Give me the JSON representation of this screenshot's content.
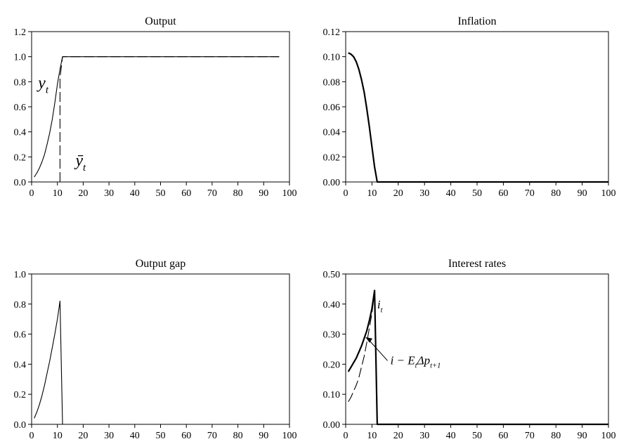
{
  "chart_data": [
    {
      "type": "line",
      "title": "Output",
      "xlim": [
        0,
        100
      ],
      "ylim": [
        0,
        1.2
      ],
      "xticks": [
        "0",
        "10",
        "20",
        "30",
        "40",
        "50",
        "60",
        "70",
        "80",
        "90",
        "100"
      ],
      "yticks": [
        "0.0",
        "0.2",
        "0.4",
        "0.6",
        "0.8",
        "1.0",
        "1.2"
      ],
      "grid": false,
      "series": [
        {
          "name": "y_t",
          "style": "solid",
          "x": [
            1,
            2,
            3,
            4,
            5,
            6,
            7,
            8,
            9,
            10,
            11,
            12,
            15,
            20,
            30,
            40,
            50,
            60,
            70,
            80,
            90,
            96
          ],
          "y": [
            0.04,
            0.07,
            0.11,
            0.16,
            0.22,
            0.3,
            0.39,
            0.5,
            0.63,
            0.78,
            0.9,
            1.0,
            1.0,
            1.0,
            1.0,
            1.0,
            1.0,
            1.0,
            1.0,
            1.0,
            1.0,
            1.0
          ]
        },
        {
          "name": "ȳ_t",
          "style": "dashed",
          "x": [
            11,
            11,
            12,
            15,
            20,
            30,
            40,
            50,
            60,
            70,
            80,
            90,
            96
          ],
          "y": [
            0.0,
            0.83,
            1.0,
            1.0,
            1.0,
            1.0,
            1.0,
            1.0,
            1.0,
            1.0,
            1.0,
            1.0,
            1.0
          ]
        }
      ],
      "annotations": [
        {
          "text": "y",
          "sub": "t",
          "x": 2.5,
          "y": 0.75
        },
        {
          "text": "ȳ",
          "sub": "t",
          "x": 17,
          "y": 0.13
        }
      ]
    },
    {
      "type": "line",
      "title": "Inflation",
      "xlim": [
        0,
        100
      ],
      "ylim": [
        0,
        0.12
      ],
      "xticks": [
        "0",
        "10",
        "20",
        "30",
        "40",
        "50",
        "60",
        "70",
        "80",
        "90",
        "100"
      ],
      "yticks": [
        "0.00",
        "0.02",
        "0.04",
        "0.06",
        "0.08",
        "0.10",
        "0.12"
      ],
      "grid": false,
      "series": [
        {
          "name": "",
          "style": "bold",
          "x": [
            1,
            2,
            3,
            4,
            5,
            6,
            7,
            8,
            9,
            10,
            11,
            12,
            13,
            20,
            30,
            40,
            50,
            60,
            70,
            80,
            90,
            100
          ],
          "y": [
            0.103,
            0.102,
            0.1,
            0.096,
            0.09,
            0.082,
            0.072,
            0.059,
            0.044,
            0.028,
            0.012,
            0.0,
            0.0,
            0.0,
            0.0,
            0.0,
            0.0,
            0.0,
            0.0,
            0.0,
            0.0,
            0.0
          ]
        }
      ],
      "annotations": []
    },
    {
      "type": "line",
      "title": "Output gap",
      "xlim": [
        0,
        100
      ],
      "ylim": [
        0,
        1.0
      ],
      "xticks": [
        "0",
        "10",
        "20",
        "30",
        "40",
        "50",
        "60",
        "70",
        "80",
        "90",
        "100"
      ],
      "yticks": [
        "0.0",
        "0.2",
        "0.4",
        "0.6",
        "0.8",
        "1.0"
      ],
      "grid": false,
      "series": [
        {
          "name": "",
          "style": "solid",
          "x": [
            1,
            2,
            3,
            4,
            5,
            6,
            7,
            8,
            9,
            10,
            11,
            12
          ],
          "y": [
            0.04,
            0.08,
            0.13,
            0.19,
            0.26,
            0.34,
            0.42,
            0.51,
            0.6,
            0.7,
            0.82,
            0.0
          ]
        }
      ],
      "annotations": []
    },
    {
      "type": "line",
      "title": "Interest rates",
      "xlim": [
        0,
        100
      ],
      "ylim": [
        0,
        0.5
      ],
      "xticks": [
        "0",
        "10",
        "20",
        "30",
        "40",
        "50",
        "60",
        "70",
        "80",
        "90",
        "100"
      ],
      "yticks": [
        "0.00",
        "0.10",
        "0.20",
        "0.30",
        "0.40",
        "0.50"
      ],
      "grid": false,
      "series": [
        {
          "name": "i_t",
          "style": "bold",
          "x": [
            1,
            2,
            3,
            4,
            5,
            6,
            7,
            8,
            9,
            10,
            11,
            12,
            13,
            20,
            30,
            40,
            50,
            60,
            70,
            80,
            90,
            100
          ],
          "y": [
            0.175,
            0.19,
            0.205,
            0.22,
            0.24,
            0.26,
            0.285,
            0.31,
            0.345,
            0.385,
            0.445,
            0.0,
            0.0,
            0.0,
            0.0,
            0.0,
            0.0,
            0.0,
            0.0,
            0.0,
            0.0,
            0.0
          ]
        },
        {
          "name": "i − E_tΔp_{t+1}",
          "style": "dashed",
          "x": [
            1,
            2,
            3,
            4,
            5,
            6,
            7,
            8,
            9,
            10,
            11,
            12
          ],
          "y": [
            0.075,
            0.09,
            0.11,
            0.13,
            0.155,
            0.19,
            0.225,
            0.27,
            0.32,
            0.37,
            0.44,
            0.0
          ]
        }
      ],
      "annotations": [
        {
          "text": "i",
          "sub": "t",
          "x": 12,
          "y": 0.385
        },
        {
          "text": "i − E",
          "sub": "t",
          "tail": "Δp",
          "sub2": "t+1",
          "x": 17,
          "y": 0.2,
          "arrow_to": [
            7.5,
            0.29
          ]
        }
      ]
    }
  ]
}
